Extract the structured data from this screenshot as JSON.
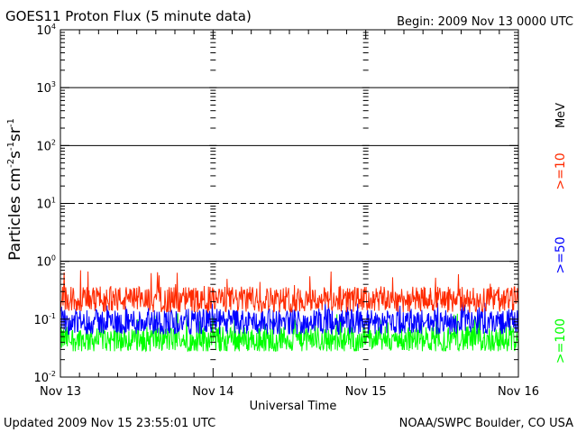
{
  "chart_data": {
    "type": "line",
    "title": "GOES11 Proton Flux (5 minute data)",
    "begin_label": "Begin: 2009 Nov 13 0000 UTC",
    "ylabel": {
      "base": "Particles cm",
      "e1": "-2",
      "mid1": "s",
      "e2": "-1",
      "mid2": "sr",
      "e3": "-1"
    },
    "xlabel": "Universal Time",
    "updated": "Updated 2009 Nov 15 23:55:01 UTC",
    "source": "NOAA/SWPC Boulder, CO USA",
    "unit_label": "MeV",
    "y_scale": "log",
    "ylim": [
      0.01,
      10000
    ],
    "y_ticks": [
      {
        "value": 10000,
        "base": "10",
        "exp": "4"
      },
      {
        "value": 1000,
        "base": "10",
        "exp": "3"
      },
      {
        "value": 100,
        "base": "10",
        "exp": "2"
      },
      {
        "value": 10,
        "base": "10",
        "exp": "1"
      },
      {
        "value": 1,
        "base": "10",
        "exp": "0"
      },
      {
        "value": 0.1,
        "base": "10",
        "exp": "-1"
      },
      {
        "value": 0.01,
        "base": "10",
        "exp": "-2"
      }
    ],
    "x_range": [
      "2009-11-13 00:00",
      "2009-11-16 00:00"
    ],
    "x_ticks": [
      "Nov 13",
      "Nov 14",
      "Nov 15",
      "Nov 16"
    ],
    "grid": {
      "solid_thresholds": [
        1000,
        100,
        1
      ],
      "dashed_thresholds": [
        10
      ]
    },
    "series": [
      {
        "name": ">=10",
        "color": "#ff2a00",
        "typical_flux": 0.22,
        "min_flux": 0.13,
        "max_flux": 0.7
      },
      {
        "name": ">=50",
        "color": "#0000ff",
        "typical_flux": 0.09,
        "min_flux": 0.055,
        "max_flux": 0.2
      },
      {
        "name": ">=100",
        "color": "#00ff00",
        "typical_flux": 0.045,
        "min_flux": 0.028,
        "max_flux": 0.13
      }
    ]
  }
}
